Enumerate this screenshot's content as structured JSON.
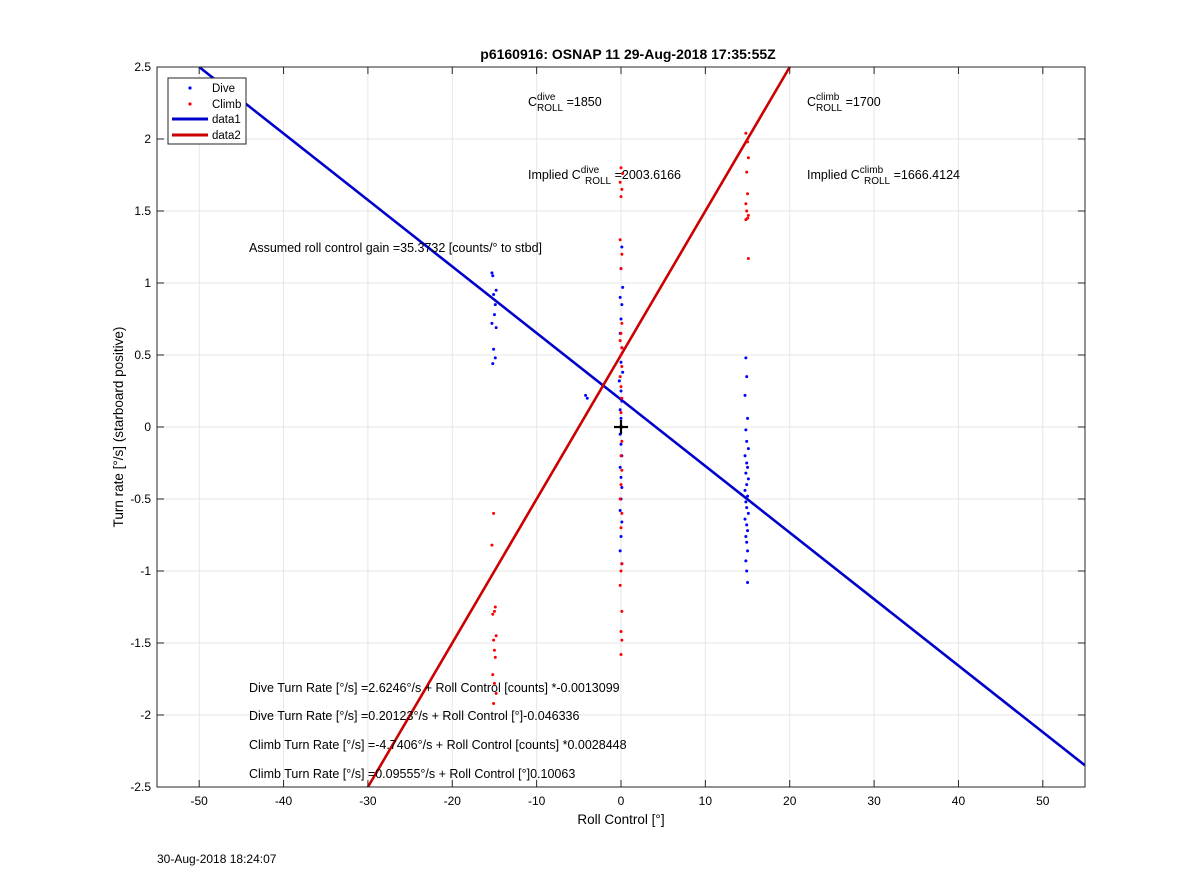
{
  "chart_data": {
    "type": "scatter",
    "title": "p6160916: OSNAP 11 29-Aug-2018 17:35:55Z",
    "xlabel": "Roll Control [°]",
    "ylabel": "Turn rate [°/s] (starboard positive)",
    "xlim": [
      -55,
      55
    ],
    "ylim": [
      -2.5,
      2.5
    ],
    "xticks": [
      -50,
      -40,
      -30,
      -20,
      -10,
      0,
      10,
      20,
      30,
      40,
      50
    ],
    "yticks": [
      -2.5,
      -2,
      -1.5,
      -1,
      -0.5,
      0,
      0.5,
      1,
      1.5,
      2,
      2.5
    ],
    "grid": true,
    "legend_position": "top-left",
    "series": [
      {
        "name": "Dive",
        "kind": "points",
        "color": "#0000ff",
        "points": [
          [
            -15.3,
            1.07
          ],
          [
            -15.2,
            1.05
          ],
          [
            -14.8,
            0.95
          ],
          [
            -15.1,
            0.92
          ],
          [
            -14.9,
            0.85
          ],
          [
            -15.0,
            0.78
          ],
          [
            -15.3,
            0.72
          ],
          [
            -14.8,
            0.69
          ],
          [
            -15.1,
            0.54
          ],
          [
            -14.9,
            0.48
          ],
          [
            -15.2,
            0.44
          ],
          [
            -4.2,
            0.22
          ],
          [
            -4.0,
            0.2
          ],
          [
            0.1,
            1.25
          ],
          [
            0.0,
            1.1
          ],
          [
            0.2,
            0.97
          ],
          [
            -0.1,
            0.9
          ],
          [
            0.1,
            0.85
          ],
          [
            0.0,
            0.75
          ],
          [
            -0.1,
            0.65
          ],
          [
            0.1,
            0.55
          ],
          [
            0.0,
            0.45
          ],
          [
            0.2,
            0.38
          ],
          [
            -0.2,
            0.32
          ],
          [
            0.0,
            0.25
          ],
          [
            0.1,
            0.18
          ],
          [
            -0.1,
            0.12
          ],
          [
            0.0,
            0.06
          ],
          [
            0.1,
            0.0
          ],
          [
            -0.1,
            -0.05
          ],
          [
            0.0,
            -0.12
          ],
          [
            0.1,
            -0.2
          ],
          [
            -0.1,
            -0.28
          ],
          [
            0.0,
            -0.35
          ],
          [
            0.1,
            -0.42
          ],
          [
            0.0,
            -0.5
          ],
          [
            -0.1,
            -0.58
          ],
          [
            0.1,
            -0.66
          ],
          [
            0.0,
            -0.76
          ],
          [
            -0.1,
            -0.86
          ],
          [
            0.1,
            -0.95
          ],
          [
            14.8,
            0.48
          ],
          [
            14.9,
            0.35
          ],
          [
            14.7,
            0.22
          ],
          [
            15.0,
            0.06
          ],
          [
            14.8,
            -0.02
          ],
          [
            14.9,
            -0.1
          ],
          [
            15.1,
            -0.15
          ],
          [
            14.7,
            -0.2
          ],
          [
            14.9,
            -0.25
          ],
          [
            15.0,
            -0.28
          ],
          [
            14.8,
            -0.32
          ],
          [
            15.1,
            -0.36
          ],
          [
            14.9,
            -0.4
          ],
          [
            14.7,
            -0.44
          ],
          [
            15.0,
            -0.48
          ],
          [
            14.8,
            -0.52
          ],
          [
            14.9,
            -0.56
          ],
          [
            15.1,
            -0.6
          ],
          [
            14.7,
            -0.64
          ],
          [
            14.9,
            -0.68
          ],
          [
            15.0,
            -0.72
          ],
          [
            14.8,
            -0.76
          ],
          [
            14.9,
            -0.8
          ],
          [
            15.0,
            -0.86
          ],
          [
            14.8,
            -0.93
          ],
          [
            14.9,
            -1.0
          ],
          [
            15.0,
            -1.08
          ]
        ]
      },
      {
        "name": "Climb",
        "kind": "points",
        "color": "#ff0000",
        "points": [
          [
            -15.1,
            -0.6
          ],
          [
            -15.3,
            -0.82
          ],
          [
            -14.9,
            -1.25
          ],
          [
            -15.0,
            -1.28
          ],
          [
            -15.2,
            -1.3
          ],
          [
            -14.8,
            -1.45
          ],
          [
            -15.1,
            -1.48
          ],
          [
            -15.0,
            -1.55
          ],
          [
            -14.9,
            -1.6
          ],
          [
            -15.2,
            -1.72
          ],
          [
            -15.0,
            -1.78
          ],
          [
            -14.8,
            -1.85
          ],
          [
            -15.1,
            -1.92
          ],
          [
            0.0,
            1.8
          ],
          [
            0.2,
            1.76
          ],
          [
            -0.1,
            1.7
          ],
          [
            0.1,
            1.65
          ],
          [
            0.0,
            1.6
          ],
          [
            -0.1,
            1.3
          ],
          [
            0.1,
            1.2
          ],
          [
            0.0,
            1.1
          ],
          [
            0.1,
            0.72
          ],
          [
            0.0,
            0.65
          ],
          [
            -0.1,
            0.6
          ],
          [
            0.1,
            0.55
          ],
          [
            0.0,
            0.5
          ],
          [
            0.1,
            0.42
          ],
          [
            -0.1,
            0.35
          ],
          [
            0.0,
            0.28
          ],
          [
            0.1,
            0.2
          ],
          [
            0.0,
            0.1
          ],
          [
            -0.1,
            0.0
          ],
          [
            0.1,
            -0.1
          ],
          [
            0.0,
            -0.2
          ],
          [
            0.1,
            -0.3
          ],
          [
            0.0,
            -0.4
          ],
          [
            -0.1,
            -0.5
          ],
          [
            0.1,
            -0.6
          ],
          [
            0.0,
            -0.7
          ],
          [
            0.1,
            -0.95
          ],
          [
            0.0,
            -1.0
          ],
          [
            -0.1,
            -1.1
          ],
          [
            0.1,
            -1.28
          ],
          [
            0.0,
            -1.42
          ],
          [
            0.1,
            -1.48
          ],
          [
            0.0,
            -1.58
          ],
          [
            14.8,
            2.04
          ],
          [
            15.0,
            1.98
          ],
          [
            15.1,
            1.87
          ],
          [
            14.9,
            1.77
          ],
          [
            15.0,
            1.62
          ],
          [
            14.8,
            1.55
          ],
          [
            14.9,
            1.5
          ],
          [
            15.1,
            1.47
          ],
          [
            15.0,
            1.45
          ],
          [
            14.8,
            1.44
          ],
          [
            15.1,
            1.17
          ]
        ]
      },
      {
        "name": "data1",
        "kind": "line",
        "color": "#0000cc",
        "x": [
          -50,
          55
        ],
        "y": [
          2.5,
          -2.35
        ]
      },
      {
        "name": "data2",
        "kind": "line",
        "color": "#cc0000",
        "x": [
          -30,
          20
        ],
        "y": [
          -2.5,
          2.5
        ]
      }
    ],
    "origin_marker": {
      "x": 0,
      "y": 0,
      "symbol": "+"
    },
    "annotations": {
      "c_dive": {
        "pre": "C",
        "sup": "dive",
        "sub": "ROLL",
        "post": " =1850"
      },
      "c_climb": {
        "pre": "C",
        "sup": "climb",
        "sub": "ROLL",
        "post": " =1700"
      },
      "imp_dive": {
        "pre": "Implied C",
        "sup": "dive",
        "sub": "ROLL",
        "post": " =2003.6166"
      },
      "imp_climb": {
        "pre": "Implied C",
        "sup": "climb",
        "sub": "ROLL",
        "post": " =1666.4124"
      },
      "gain": "Assumed roll control gain =35.3732 [counts/° to stbd]",
      "fit1": "Dive Turn Rate [°/s] =2.6246°/s + Roll Control [counts] *-0.0013099",
      "fit2": "Dive Turn Rate [°/s] =0.20123°/s + Roll Control [°]-0.046336",
      "fit3": "Climb Turn Rate [°/s] =-4.7406°/s + Roll Control [counts] *0.0028448",
      "fit4": "Climb Turn Rate [°/s] =0.09555°/s + Roll Control [°]0.10063"
    }
  },
  "footer": {
    "timestamp": "30-Aug-2018 18:24:07"
  }
}
